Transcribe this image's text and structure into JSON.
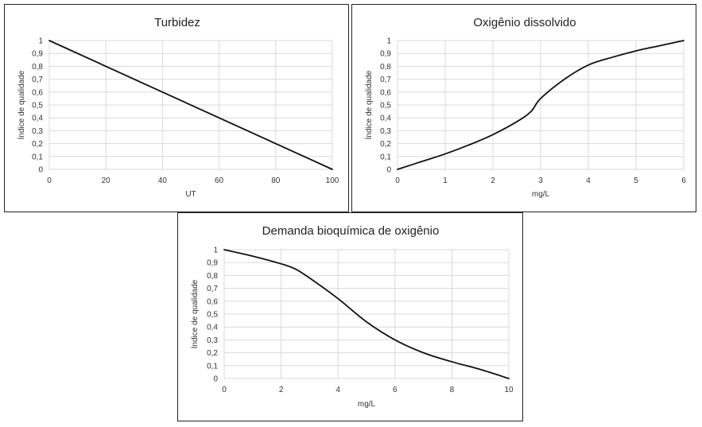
{
  "chart_data": [
    {
      "type": "line",
      "title": "Turbidez",
      "xlabel": "UT",
      "ylabel": "Índice de qualidade",
      "xlim": [
        0,
        100
      ],
      "ylim": [
        0,
        1
      ],
      "x_ticks": [
        "0",
        "20",
        "40",
        "60",
        "80",
        "100"
      ],
      "y_ticks": [
        "0",
        "0,1",
        "0,2",
        "0,3",
        "0,4",
        "0,5",
        "0,6",
        "0,7",
        "0,8",
        "0,9",
        "1"
      ],
      "series": [
        {
          "x": [
            0,
            100
          ],
          "y": [
            1,
            0
          ]
        }
      ],
      "grid": true
    },
    {
      "type": "line",
      "title": "Oxigênio dissolvido",
      "xlabel": "mg/L",
      "ylabel": "Índice de qualidade",
      "xlim": [
        0,
        6
      ],
      "ylim": [
        0,
        1
      ],
      "x_ticks": [
        "0",
        "1",
        "2",
        "3",
        "4",
        "5",
        "6"
      ],
      "y_ticks": [
        "0",
        "0,1",
        "0,2",
        "0,3",
        "0,4",
        "0,5",
        "0,6",
        "0,7",
        "0,8",
        "0,9",
        "1"
      ],
      "series": [
        {
          "x": [
            0,
            0.5,
            1,
            1.5,
            2,
            2.5,
            2.8,
            3,
            3.5,
            4,
            4.5,
            5,
            5.5,
            6
          ],
          "y": [
            0,
            0.06,
            0.12,
            0.19,
            0.27,
            0.37,
            0.45,
            0.55,
            0.7,
            0.81,
            0.87,
            0.92,
            0.96,
            1
          ]
        }
      ],
      "grid": true
    },
    {
      "type": "line",
      "title": "Demanda bioquímica de oxigênio",
      "xlabel": "mg/L",
      "ylabel": "Índice de qualidade",
      "xlim": [
        0,
        10
      ],
      "ylim": [
        0,
        1
      ],
      "x_ticks": [
        "0",
        "2",
        "4",
        "6",
        "8",
        "10"
      ],
      "y_ticks": [
        "0",
        "0,1",
        "0,2",
        "0,3",
        "0,4",
        "0,5",
        "0,6",
        "0,7",
        "0,8",
        "0,9",
        "1"
      ],
      "series": [
        {
          "x": [
            0,
            1,
            2,
            2.5,
            3,
            4,
            5,
            6,
            7,
            8,
            9,
            10
          ],
          "y": [
            1,
            0.95,
            0.89,
            0.85,
            0.78,
            0.62,
            0.44,
            0.3,
            0.2,
            0.13,
            0.07,
            0
          ]
        }
      ],
      "grid": true
    }
  ]
}
